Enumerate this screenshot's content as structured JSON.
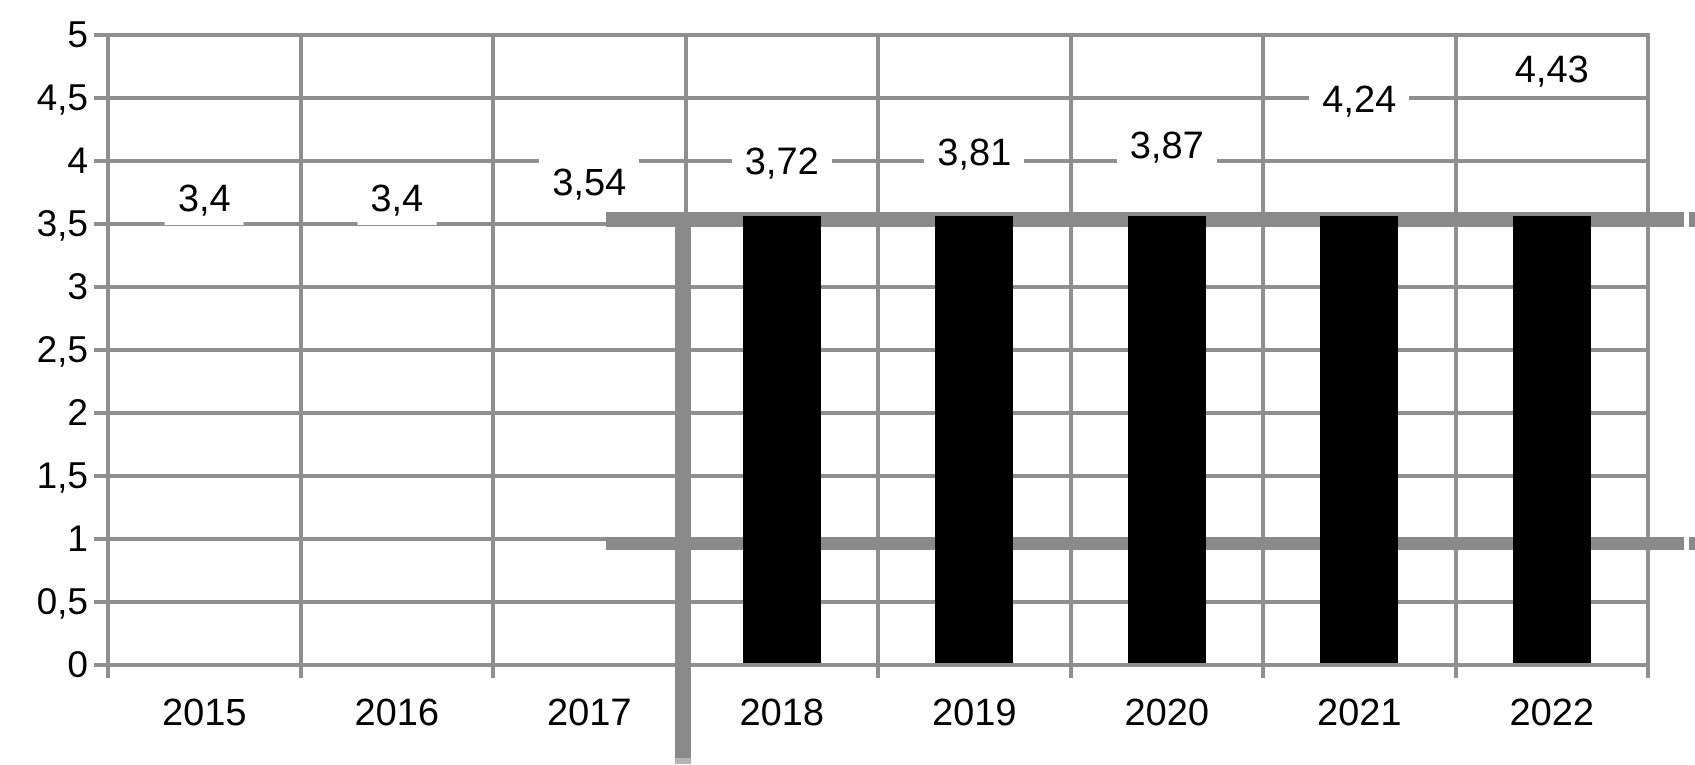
{
  "chart_data": {
    "type": "bar",
    "title": "",
    "xlabel": "",
    "ylabel": "",
    "categories": [
      "2015",
      "2016",
      "2017",
      "2018",
      "2019",
      "2020",
      "2021",
      "2022"
    ],
    "values": [
      3.4,
      3.4,
      3.54,
      3.72,
      3.81,
      3.87,
      4.24,
      4.43
    ],
    "data_labels": [
      "3,4",
      "3,4",
      "3,54",
      "3,72",
      "3,81",
      "3,87",
      "4,24",
      "4,43"
    ],
    "decimal_separator": ",",
    "ylim": [
      0,
      5
    ],
    "ytick_step": 0.5,
    "yticks": [
      "5",
      "4,5",
      "4",
      "3,5",
      "3",
      "2,5",
      "2",
      "1,5",
      "1",
      "0,5",
      "0"
    ],
    "ytick_values": [
      5,
      4.5,
      4,
      3.5,
      3,
      2.5,
      2,
      1.5,
      1,
      0.5,
      0
    ],
    "grid": true,
    "legend": false,
    "bar_style": {
      "fill": "#000000",
      "hidden_categories": [
        "2015",
        "2016",
        "2017"
      ],
      "visible_categories": [
        "2018",
        "2019",
        "2020",
        "2021",
        "2022"
      ],
      "bars_clipped_at_value": 3.56,
      "note": "bars for 2015-2017 are not drawn (white); black bars 2018-2022 are all drawn only up to ~3.56 even though their labeled values are higher; data labels sit above the position their true value implies and have opaque white boxes that interrupt gridlines"
    },
    "annotations": [
      {
        "kind": "thick-horizontal-line",
        "at_value": 3.55,
        "from": "2017/2018 column boundary",
        "to": "right image edge",
        "detail": "small white gap then short dash at extreme right edge"
      },
      {
        "kind": "thick-horizontal-line",
        "at_value": 0.97,
        "from": "2017/2018 column boundary",
        "to": "right image edge",
        "detail": "small white gap then short dash at extreme right edge"
      },
      {
        "kind": "thick-vertical-line",
        "at": "2017/2018 column boundary",
        "from_value": 3.55,
        "to": "below x-axis near image bottom",
        "detail": "lighter gray tip at bottom end"
      }
    ]
  },
  "colors": {
    "background": "#ffffff",
    "gridline": "#8f8f8f",
    "annotation": "#8a8a8a",
    "annotation_tip": "#b3b3b3",
    "bar": "#000000",
    "text": "#000000",
    "label_background": "#ffffff"
  }
}
